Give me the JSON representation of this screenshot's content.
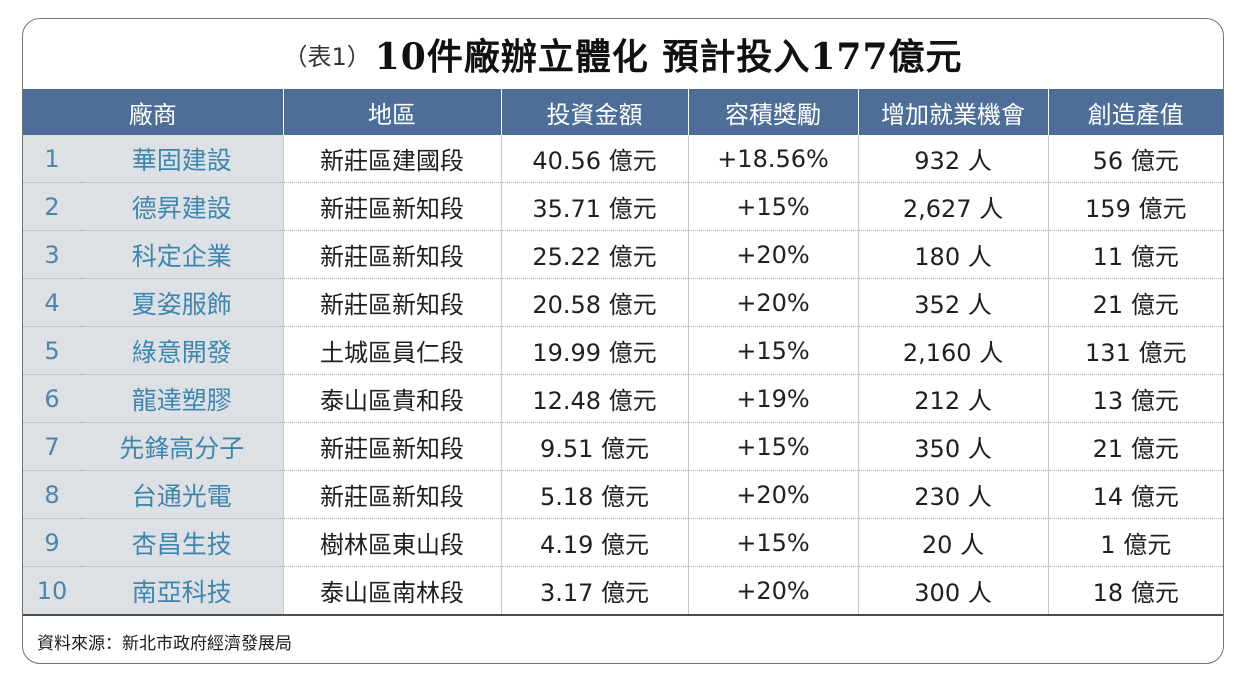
{
  "title": {
    "tag": "（表1）",
    "main": "10件廠辦立體化 預計投入177億元"
  },
  "columns": [
    "廠商",
    "地區",
    "投資金額",
    "容積獎勵",
    "增加就業機會",
    "創造產值"
  ],
  "rows": [
    {
      "no": "1",
      "company": "華固建設",
      "area": "新莊區建國段",
      "investment": "40.56 億元",
      "bonus": "+18.56%",
      "jobs": "932 人",
      "value": "56 億元"
    },
    {
      "no": "2",
      "company": "德昇建設",
      "area": "新莊區新知段",
      "investment": "35.71 億元",
      "bonus": "+15%",
      "jobs": "2,627 人",
      "value": "159 億元"
    },
    {
      "no": "3",
      "company": "科定企業",
      "area": "新莊區新知段",
      "investment": "25.22 億元",
      "bonus": "+20%",
      "jobs": "180 人",
      "value": "11 億元"
    },
    {
      "no": "4",
      "company": "夏姿服飾",
      "area": "新莊區新知段",
      "investment": "20.58 億元",
      "bonus": "+20%",
      "jobs": "352 人",
      "value": "21 億元"
    },
    {
      "no": "5",
      "company": "綠意開發",
      "area": "土城區員仁段",
      "investment": "19.99 億元",
      "bonus": "+15%",
      "jobs": "2,160 人",
      "value": "131 億元"
    },
    {
      "no": "6",
      "company": "龍達塑膠",
      "area": "泰山區貴和段",
      "investment": "12.48 億元",
      "bonus": "+19%",
      "jobs": "212 人",
      "value": "13 億元"
    },
    {
      "no": "7",
      "company": "先鋒高分子",
      "area": "新莊區新知段",
      "investment": "9.51 億元",
      "bonus": "+15%",
      "jobs": "350 人",
      "value": "21 億元"
    },
    {
      "no": "8",
      "company": "台通光電",
      "area": "新莊區新知段",
      "investment": "5.18 億元",
      "bonus": "+20%",
      "jobs": "230 人",
      "value": "14 億元"
    },
    {
      "no": "9",
      "company": "杏昌生技",
      "area": "樹林區東山段",
      "investment": "4.19 億元",
      "bonus": "+15%",
      "jobs": "20 人",
      "value": "1 億元"
    },
    {
      "no": "10",
      "company": "南亞科技",
      "area": "泰山區南林段",
      "investment": "3.17 億元",
      "bonus": "+20%",
      "jobs": "300 人",
      "value": "18 億元"
    }
  ],
  "source": "資料來源：新北市政府經濟發展局",
  "colors": {
    "header_bg": "#4c6e97",
    "company_bg": "#dde0e4",
    "company_text": "#3f86ad"
  }
}
